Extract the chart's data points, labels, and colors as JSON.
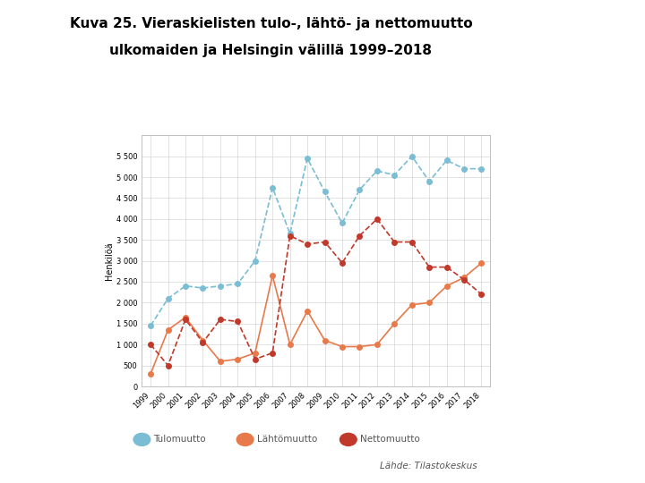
{
  "title_line1": "Kuva 25. Vieraskielisten tulo-, lähtö- ja nettomuutto",
  "title_line2": "ulkomaiden ja Helsingin välillä 1999–2018",
  "years": [
    1999,
    2000,
    2001,
    2002,
    2003,
    2004,
    2005,
    2006,
    2007,
    2008,
    2009,
    2010,
    2011,
    2012,
    2013,
    2014,
    2015,
    2016,
    2017,
    2018
  ],
  "tulomuutto": [
    1450,
    2100,
    2400,
    2350,
    2400,
    2450,
    3000,
    4750,
    3650,
    5450,
    4650,
    3900,
    4700,
    5150,
    5050,
    5500,
    4900,
    5400,
    5200,
    5200
  ],
  "lahtomuutto": [
    300,
    1350,
    1650,
    1100,
    600,
    650,
    800,
    2650,
    1000,
    1800,
    1100,
    950,
    950,
    1000,
    1500,
    1950,
    2000,
    2400,
    2600,
    2950
  ],
  "nettomuutto": [
    1000,
    500,
    1600,
    1050,
    1600,
    1550,
    650,
    800,
    3600,
    3400,
    3450,
    2950,
    3600,
    4000,
    3450,
    3450,
    2850,
    2850,
    2550,
    2200
  ],
  "tulomuutto_color": "#7bbdd4",
  "lahtomuutto_color": "#e8794a",
  "nettomuutto_color": "#c0392b",
  "ylabel": "Henkilöä",
  "ylim": [
    0,
    6000
  ],
  "yticks": [
    0,
    500,
    1000,
    1500,
    2000,
    2500,
    3000,
    3500,
    4000,
    4500,
    5000,
    5500
  ],
  "ytick_labels": [
    "0",
    "500",
    "1 000",
    "1 500",
    "2 000",
    "2 500",
    "3 000",
    "3 500",
    "4 000",
    "4 500",
    "5 000",
    "5 500"
  ],
  "background_color": "#ffffff",
  "right_panel_color": "#c5dcea",
  "footer_text": "Lähde: Tilastokeskus",
  "legend_labels": [
    "Tulomuutto",
    "Lähtömuutto",
    "Nettomuutto"
  ]
}
